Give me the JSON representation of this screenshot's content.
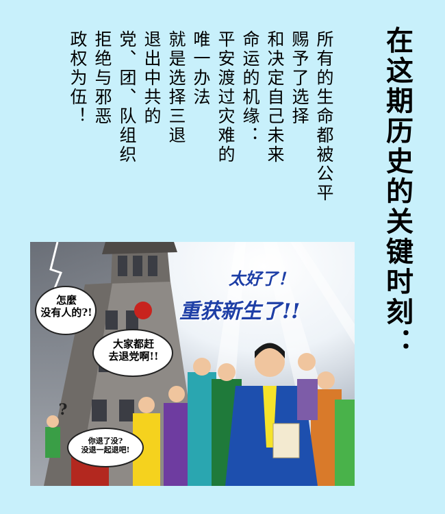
{
  "title": "在这期历史的关键时刻：",
  "text_columns": [
    "所有的生命都被公平",
    "赐予了选择",
    "和决定自己未来",
    "命运的机缘：",
    "平安渡过灾难的",
    "唯一办法",
    "就是选择三退",
    "退出中共的",
    "党、团、队组织",
    "拒绝与邪恶",
    "政权为伍！"
  ],
  "illustration": {
    "headline_line1": "太好了！",
    "headline_line2": "重获新生了!!",
    "bubble_left": "怎麼\n没有人的?!",
    "bubble_middle": "大家都赶\n去退党啊!!",
    "bubble_bottom": "你退了没?\n没退一起退吧!",
    "question_mark": "?",
    "colors": {
      "sky": "#dfe6ee",
      "building": "#8e8a86",
      "headline": "#1e3fa6",
      "flag": "#c8231e"
    }
  }
}
